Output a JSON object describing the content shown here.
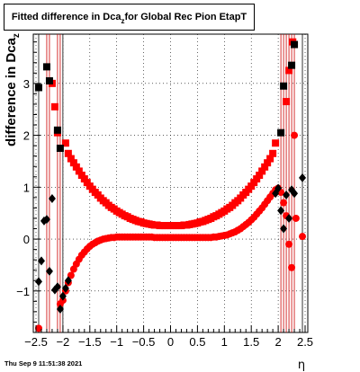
{
  "title": {
    "prefix": "Fitted difference in Dca",
    "subscript": "z",
    "suffix": "  for Global Rec Pion EtapT"
  },
  "footer_timestamp": "Thu Sep  9 11:51:38 2021",
  "chart_data": {
    "type": "scatter",
    "title": "Fitted difference in Dcaz for Global Rec Pion EtapT",
    "xlabel": "η",
    "ylabel": "difference in Dcaz",
    "xlim": [
      -2.55,
      2.55
    ],
    "ylim": [
      -1.8,
      3.95
    ],
    "grid": true,
    "x_ticks": [
      -2.5,
      -2,
      -1.5,
      -1,
      -0.5,
      0,
      0.5,
      1,
      1.5,
      2,
      2.5
    ],
    "x_tick_labels": [
      "−2.5",
      "−2",
      "−1.5",
      "−1",
      "−0.5",
      "0",
      "0.5",
      "1",
      "1.5",
      "2",
      "2.5"
    ],
    "y_ticks": [
      -1,
      0,
      1,
      2,
      3
    ],
    "y_tick_labels": [
      "−1",
      "0",
      "1",
      "2",
      "3"
    ],
    "colors": {
      "red": "#ff0000",
      "black": "#000000",
      "errorbar_red": "#cc0000"
    },
    "series": [
      {
        "marker": "square",
        "color": "#ff0000",
        "points": [
          [
            -1.95,
            1.85
          ],
          [
            -1.9,
            1.65
          ],
          [
            -1.85,
            1.55
          ],
          [
            -1.8,
            1.47
          ],
          [
            -1.75,
            1.39
          ],
          [
            -1.7,
            1.31
          ],
          [
            -1.65,
            1.23
          ],
          [
            -1.6,
            1.16
          ],
          [
            -1.55,
            1.09
          ],
          [
            -1.5,
            1.02
          ],
          [
            -1.45,
            0.96
          ],
          [
            -1.4,
            0.9
          ],
          [
            -1.35,
            0.85
          ],
          [
            -1.3,
            0.79
          ],
          [
            -1.25,
            0.74
          ],
          [
            -1.2,
            0.7
          ],
          [
            -1.15,
            0.65
          ],
          [
            -1.1,
            0.61
          ],
          [
            -1.05,
            0.58
          ],
          [
            -1.0,
            0.54
          ],
          [
            -0.95,
            0.51
          ],
          [
            -0.9,
            0.48
          ],
          [
            -0.85,
            0.45
          ],
          [
            -0.8,
            0.43
          ],
          [
            -0.75,
            0.4
          ],
          [
            -0.7,
            0.38
          ],
          [
            -0.65,
            0.36
          ],
          [
            -0.6,
            0.34
          ],
          [
            -0.55,
            0.33
          ],
          [
            -0.5,
            0.31
          ],
          [
            -0.45,
            0.3
          ],
          [
            -0.4,
            0.29
          ],
          [
            -0.35,
            0.28
          ],
          [
            -0.3,
            0.27
          ],
          [
            -0.25,
            0.27
          ],
          [
            -0.2,
            0.26
          ],
          [
            -0.15,
            0.26
          ],
          [
            -0.1,
            0.26
          ],
          [
            -0.05,
            0.26
          ],
          [
            0.0,
            0.26
          ],
          [
            0.05,
            0.26
          ],
          [
            0.1,
            0.26
          ],
          [
            0.15,
            0.26
          ],
          [
            0.2,
            0.26
          ],
          [
            0.25,
            0.27
          ],
          [
            0.3,
            0.27
          ],
          [
            0.35,
            0.28
          ],
          [
            0.4,
            0.29
          ],
          [
            0.45,
            0.3
          ],
          [
            0.5,
            0.31
          ],
          [
            0.55,
            0.33
          ],
          [
            0.6,
            0.34
          ],
          [
            0.65,
            0.36
          ],
          [
            0.7,
            0.38
          ],
          [
            0.75,
            0.4
          ],
          [
            0.8,
            0.43
          ],
          [
            0.85,
            0.45
          ],
          [
            0.9,
            0.48
          ],
          [
            0.95,
            0.51
          ],
          [
            1.0,
            0.54
          ],
          [
            1.05,
            0.58
          ],
          [
            1.1,
            0.61
          ],
          [
            1.15,
            0.65
          ],
          [
            1.2,
            0.7
          ],
          [
            1.25,
            0.74
          ],
          [
            1.3,
            0.79
          ],
          [
            1.35,
            0.85
          ],
          [
            1.4,
            0.9
          ],
          [
            1.45,
            0.96
          ],
          [
            1.5,
            1.02
          ],
          [
            1.55,
            1.09
          ],
          [
            1.6,
            1.16
          ],
          [
            1.65,
            1.23
          ],
          [
            1.7,
            1.31
          ],
          [
            1.75,
            1.39
          ],
          [
            1.8,
            1.47
          ],
          [
            1.85,
            1.55
          ],
          [
            1.9,
            1.65
          ],
          [
            1.95,
            1.85
          ],
          [
            -2.1,
            2.05
          ],
          [
            -2.15,
            2.55
          ],
          [
            -2.2,
            3.0
          ],
          [
            2.15,
            2.65
          ],
          [
            2.2,
            3.25
          ],
          [
            2.27,
            3.8
          ]
        ]
      },
      {
        "marker": "square",
        "color": "#000000",
        "points": [
          [
            -2.45,
            2.92
          ],
          [
            -2.3,
            3.32
          ],
          [
            -2.25,
            3.05
          ],
          [
            -2.1,
            2.1
          ],
          [
            -2.05,
            1.75
          ],
          [
            2.05,
            2.05
          ],
          [
            2.1,
            2.95
          ],
          [
            2.25,
            3.35
          ],
          [
            2.3,
            3.75
          ]
        ]
      },
      {
        "marker": "circle",
        "color": "#ff0000",
        "points": [
          [
            -2.45,
            -1.72
          ],
          [
            -2.05,
            -1.25
          ],
          [
            -2.0,
            -1.18
          ],
          [
            -1.95,
            -1.0
          ],
          [
            -1.9,
            -0.84
          ],
          [
            -1.85,
            -0.7
          ],
          [
            -1.8,
            -0.58
          ],
          [
            -1.75,
            -0.48
          ],
          [
            -1.7,
            -0.39
          ],
          [
            -1.65,
            -0.31
          ],
          [
            -1.6,
            -0.25
          ],
          [
            -1.55,
            -0.19
          ],
          [
            -1.5,
            -0.14
          ],
          [
            -1.45,
            -0.1
          ],
          [
            -1.4,
            -0.07
          ],
          [
            -1.35,
            -0.04
          ],
          [
            -1.3,
            -0.02
          ],
          [
            -1.25,
            0.0
          ],
          [
            -1.2,
            0.01
          ],
          [
            -1.15,
            0.02
          ],
          [
            -1.1,
            0.03
          ],
          [
            -1.05,
            0.03
          ],
          [
            -1.0,
            0.04
          ],
          [
            -0.95,
            0.04
          ],
          [
            -0.9,
            0.04
          ],
          [
            -0.85,
            0.04
          ],
          [
            -0.8,
            0.04
          ],
          [
            -0.75,
            0.04
          ],
          [
            -0.7,
            0.04
          ],
          [
            -0.65,
            0.04
          ],
          [
            -0.6,
            0.04
          ],
          [
            -0.55,
            0.04
          ],
          [
            -0.5,
            0.04
          ],
          [
            -0.45,
            0.04
          ],
          [
            -0.4,
            0.04
          ],
          [
            -0.35,
            0.04
          ],
          [
            -0.3,
            0.03
          ],
          [
            -0.25,
            0.03
          ],
          [
            -0.2,
            0.03
          ],
          [
            -0.15,
            0.03
          ],
          [
            -0.1,
            0.03
          ],
          [
            -0.05,
            0.03
          ],
          [
            0.0,
            0.03
          ],
          [
            0.05,
            0.03
          ],
          [
            0.1,
            0.03
          ],
          [
            0.15,
            0.03
          ],
          [
            0.2,
            0.03
          ],
          [
            0.25,
            0.03
          ],
          [
            0.3,
            0.03
          ],
          [
            0.35,
            0.03
          ],
          [
            0.4,
            0.03
          ],
          [
            0.45,
            0.03
          ],
          [
            0.5,
            0.03
          ],
          [
            0.55,
            0.03
          ],
          [
            0.6,
            0.03
          ],
          [
            0.65,
            0.03
          ],
          [
            0.7,
            0.03
          ],
          [
            0.75,
            0.03
          ],
          [
            0.8,
            0.04
          ],
          [
            0.85,
            0.04
          ],
          [
            0.9,
            0.05
          ],
          [
            0.95,
            0.06
          ],
          [
            1.0,
            0.07
          ],
          [
            1.05,
            0.08
          ],
          [
            1.1,
            0.1
          ],
          [
            1.15,
            0.12
          ],
          [
            1.2,
            0.14
          ],
          [
            1.25,
            0.17
          ],
          [
            1.3,
            0.2
          ],
          [
            1.35,
            0.24
          ],
          [
            1.4,
            0.28
          ],
          [
            1.45,
            0.32
          ],
          [
            1.5,
            0.37
          ],
          [
            1.55,
            0.42
          ],
          [
            1.6,
            0.48
          ],
          [
            1.65,
            0.54
          ],
          [
            1.7,
            0.6
          ],
          [
            1.75,
            0.67
          ],
          [
            1.8,
            0.74
          ],
          [
            1.85,
            0.81
          ],
          [
            1.9,
            0.88
          ],
          [
            1.95,
            0.95
          ],
          [
            2.0,
            0.98
          ],
          [
            2.05,
            0.9
          ],
          [
            2.1,
            0.7
          ],
          [
            2.15,
            0.45
          ],
          [
            2.2,
            -0.1
          ],
          [
            2.25,
            -0.55
          ],
          [
            2.3,
            2.0
          ],
          [
            2.33,
            0.4
          ],
          [
            2.45,
            0.05
          ]
        ]
      },
      {
        "marker": "diamond",
        "color": "#000000",
        "points": [
          [
            -2.45,
            -0.82
          ],
          [
            -2.4,
            -0.42
          ],
          [
            -2.35,
            0.35
          ],
          [
            -2.3,
            0.38
          ],
          [
            -2.25,
            -0.62
          ],
          [
            -2.2,
            0.78
          ],
          [
            -2.15,
            -0.98
          ],
          [
            -2.1,
            -0.92
          ],
          [
            -2.05,
            -1.35
          ],
          [
            -2.0,
            -1.1
          ],
          [
            -1.95,
            -0.95
          ],
          [
            -1.9,
            -0.8
          ],
          [
            1.95,
            0.88
          ],
          [
            2.0,
            0.98
          ],
          [
            2.05,
            0.55
          ],
          [
            2.1,
            0.2
          ],
          [
            2.15,
            0.85
          ],
          [
            2.2,
            0.4
          ],
          [
            2.25,
            0.95
          ],
          [
            2.3,
            0.88
          ],
          [
            2.45,
            1.18
          ]
        ]
      }
    ]
  }
}
